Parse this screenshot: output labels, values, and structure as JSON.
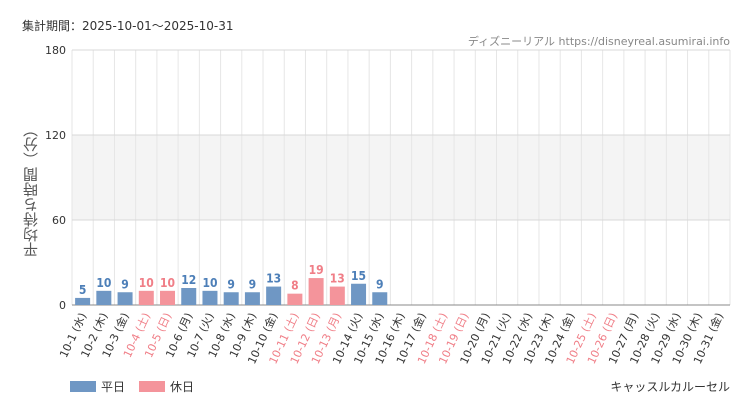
{
  "period_label": "集計期間：2025-10-01〜2025-10-31",
  "source": "ディズニーリアル https://disneyreal.asumirai.info",
  "attraction": "キャッスルカルーセル",
  "colors": {
    "weekday": "#6f97c4",
    "holiday": "#f4949b",
    "weekday_text": "#4d7fb8",
    "holiday_text": "#f07e87",
    "band": "#f4f4f4",
    "grid": "#e6e6e6"
  },
  "chart_data": {
    "type": "bar",
    "ylabel": "平均待ち時間（分）",
    "ylim": [
      0,
      180
    ],
    "yticks": [
      0,
      60,
      120,
      180
    ],
    "band": [
      60,
      120
    ],
    "categories": [
      "10-1 (水)",
      "10-2 (木)",
      "10-3 (金)",
      "10-4 (土)",
      "10-5 (日)",
      "10-6 (月)",
      "10-7 (火)",
      "10-8 (水)",
      "10-9 (木)",
      "10-10 (金)",
      "10-11 (土)",
      "10-12 (日)",
      "10-13 (月)",
      "10-14 (火)",
      "10-15 (水)",
      "10-16 (木)",
      "10-17 (金)",
      "10-18 (土)",
      "10-19 (日)",
      "10-20 (月)",
      "10-21 (火)",
      "10-22 (水)",
      "10-23 (木)",
      "10-24 (金)",
      "10-25 (土)",
      "10-26 (日)",
      "10-27 (月)",
      "10-28 (火)",
      "10-29 (水)",
      "10-30 (木)",
      "10-31 (金)"
    ],
    "day_type": [
      "weekday",
      "weekday",
      "weekday",
      "holiday",
      "holiday",
      "weekday",
      "weekday",
      "weekday",
      "weekday",
      "weekday",
      "holiday",
      "holiday",
      "holiday",
      "weekday",
      "weekday",
      "weekday",
      "weekday",
      "holiday",
      "holiday",
      "weekday",
      "weekday",
      "weekday",
      "weekday",
      "weekday",
      "holiday",
      "holiday",
      "weekday",
      "weekday",
      "weekday",
      "weekday",
      "weekday"
    ],
    "values": [
      5,
      10,
      9,
      10,
      10,
      12,
      10,
      9,
      9,
      13,
      8,
      19,
      13,
      15,
      9,
      null,
      null,
      null,
      null,
      null,
      null,
      null,
      null,
      null,
      null,
      null,
      null,
      null,
      null,
      null,
      null
    ],
    "legend": [
      {
        "key": "weekday",
        "label": "平日"
      },
      {
        "key": "holiday",
        "label": "休日"
      }
    ],
    "legend_position": "bottom-left"
  }
}
